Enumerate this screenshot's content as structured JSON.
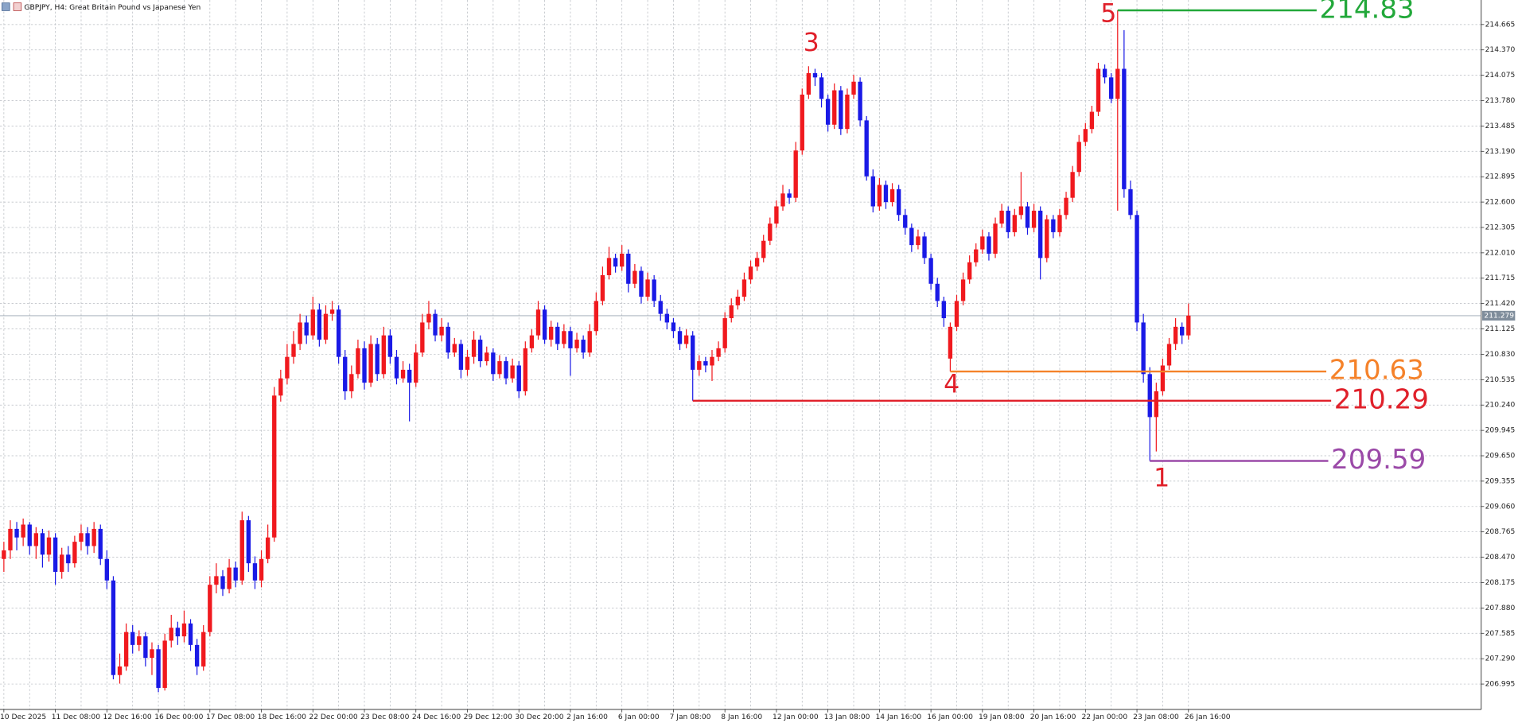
{
  "chart_data": {
    "type": "candlestick",
    "title": "GBPJPY, H4:  Great Britain Pound vs Japanese Yen",
    "bull_color": "#f0191e",
    "bear_color": "#1a1ae6",
    "grid": true,
    "ylim": [
      206.7,
      214.95
    ],
    "yticks": [
      {
        "value": 214.665,
        "label": "214.665"
      },
      {
        "value": 214.37,
        "label": "214.370"
      },
      {
        "value": 214.075,
        "label": "214.075"
      },
      {
        "value": 213.78,
        "label": "213.780"
      },
      {
        "value": 213.485,
        "label": "213.485"
      },
      {
        "value": 213.19,
        "label": "213.190"
      },
      {
        "value": 212.895,
        "label": "212.895"
      },
      {
        "value": 212.6,
        "label": "212.600"
      },
      {
        "value": 212.305,
        "label": "212.305"
      },
      {
        "value": 212.01,
        "label": "212.010"
      },
      {
        "value": 211.715,
        "label": "211.715"
      },
      {
        "value": 211.42,
        "label": "211.420"
      },
      {
        "value": 211.125,
        "label": "211.125"
      },
      {
        "value": 210.83,
        "label": "210.830"
      },
      {
        "value": 210.535,
        "label": "210.535"
      },
      {
        "value": 210.24,
        "label": "210.240"
      },
      {
        "value": 209.945,
        "label": "209.945"
      },
      {
        "value": 209.65,
        "label": "209.650"
      },
      {
        "value": 209.355,
        "label": "209.355"
      },
      {
        "value": 209.06,
        "label": "209.060"
      },
      {
        "value": 208.765,
        "label": "208.765"
      },
      {
        "value": 208.47,
        "label": "208.470"
      },
      {
        "value": 208.175,
        "label": "208.175"
      },
      {
        "value": 207.88,
        "label": "207.880"
      },
      {
        "value": 207.585,
        "label": "207.585"
      },
      {
        "value": 207.29,
        "label": "207.290"
      },
      {
        "value": 206.995,
        "label": "206.995"
      }
    ],
    "current_price": 211.279,
    "levels": [
      {
        "value": 214.83,
        "color": "#22a83a"
      },
      {
        "value": 210.63,
        "color": "#f5822a"
      },
      {
        "value": 210.29,
        "color": "#e0202a"
      },
      {
        "value": 209.59,
        "color": "#9b4aa8"
      }
    ],
    "wave_labels": [
      "5",
      "3",
      "4",
      "1"
    ],
    "categories": [
      "10 Dec 2025",
      null,
      null,
      null,
      null,
      null,
      null,
      null,
      "11 Dec 08:00",
      null,
      null,
      null,
      null,
      null,
      null,
      null,
      "12 Dec 16:00",
      null,
      null,
      null,
      null,
      null,
      null,
      null,
      "16 Dec 00:00",
      null,
      null,
      null,
      null,
      null,
      null,
      null,
      "17 Dec 08:00",
      null,
      null,
      null,
      null,
      null,
      null,
      null,
      "18 Dec 16:00",
      null,
      null,
      null,
      null,
      null,
      null,
      null,
      "22 Dec 00:00",
      null,
      null,
      null,
      null,
      null,
      null,
      null,
      "23 Dec 08:00",
      null,
      null,
      null,
      null,
      null,
      null,
      null,
      "24 Dec 16:00",
      null,
      null,
      null,
      null,
      null,
      null,
      null,
      "29 Dec 12:00",
      null,
      null,
      null,
      null,
      null,
      null,
      null,
      "30 Dec 20:00",
      null,
      null,
      null,
      null,
      null,
      null,
      null,
      "2 Jan 16:00",
      null,
      null,
      null,
      null,
      null,
      null,
      null,
      "6 Jan 00:00",
      null,
      null,
      null,
      null,
      null,
      null,
      null,
      "7 Jan 08:00",
      null,
      null,
      null,
      null,
      null,
      null,
      null,
      "8 Jan 16:00",
      null,
      null,
      null,
      null,
      null,
      null,
      null,
      "12 Jan 00:00",
      null,
      null,
      null,
      null,
      null,
      null,
      null,
      "13 Jan 08:00",
      null,
      null,
      null,
      null,
      null,
      null,
      null,
      "14 Jan 16:00",
      null,
      null,
      null,
      null,
      null,
      null,
      null,
      "16 Jan 00:00",
      null,
      null,
      null,
      null,
      null,
      null,
      null,
      "19 Jan 08:00",
      null,
      null,
      null,
      null,
      null,
      null,
      null,
      "20 Jan 16:00",
      null,
      null,
      null,
      null,
      null,
      null,
      null,
      "22 Jan 00:00",
      null,
      null,
      null,
      null,
      null,
      null,
      null,
      "23 Jan 08:00",
      null,
      null,
      null,
      null,
      null,
      null,
      null,
      "26 Jan 16:00"
    ],
    "ohlc": [
      [
        208.45,
        208.65,
        208.3,
        208.55
      ],
      [
        208.55,
        208.9,
        208.45,
        208.8
      ],
      [
        208.8,
        208.88,
        208.55,
        208.7
      ],
      [
        208.7,
        208.92,
        208.6,
        208.85
      ],
      [
        208.85,
        208.88,
        208.5,
        208.6
      ],
      [
        208.6,
        208.82,
        208.45,
        208.75
      ],
      [
        208.75,
        208.8,
        208.35,
        208.5
      ],
      [
        208.5,
        208.78,
        208.42,
        208.7
      ],
      [
        208.7,
        208.75,
        208.15,
        208.3
      ],
      [
        208.3,
        208.58,
        208.22,
        208.5
      ],
      [
        208.5,
        208.6,
        208.3,
        208.4
      ],
      [
        208.4,
        208.72,
        208.35,
        208.65
      ],
      [
        208.65,
        208.85,
        208.55,
        208.75
      ],
      [
        208.75,
        208.82,
        208.5,
        208.6
      ],
      [
        208.6,
        208.88,
        208.52,
        208.8
      ],
      [
        208.8,
        208.85,
        208.38,
        208.45
      ],
      [
        208.45,
        208.55,
        208.1,
        208.2
      ],
      [
        208.2,
        208.25,
        207.05,
        207.1
      ],
      [
        207.1,
        207.35,
        207.0,
        207.2
      ],
      [
        207.2,
        207.7,
        207.15,
        207.6
      ],
      [
        207.6,
        207.68,
        207.35,
        207.45
      ],
      [
        207.45,
        207.62,
        207.38,
        207.55
      ],
      [
        207.55,
        207.6,
        207.2,
        207.3
      ],
      [
        207.3,
        207.48,
        207.1,
        207.4
      ],
      [
        207.4,
        207.45,
        206.9,
        206.95
      ],
      [
        206.95,
        207.58,
        206.92,
        207.5
      ],
      [
        207.5,
        207.8,
        207.42,
        207.65
      ],
      [
        207.65,
        207.72,
        207.45,
        207.55
      ],
      [
        207.55,
        207.85,
        207.48,
        207.7
      ],
      [
        207.7,
        207.75,
        207.38,
        207.45
      ],
      [
        207.45,
        207.52,
        207.1,
        207.2
      ],
      [
        207.2,
        207.68,
        207.15,
        207.6
      ],
      [
        207.6,
        208.25,
        207.55,
        208.15
      ],
      [
        208.15,
        208.4,
        208.05,
        208.25
      ],
      [
        208.25,
        208.32,
        208.02,
        208.1
      ],
      [
        208.1,
        208.45,
        208.05,
        208.35
      ],
      [
        208.35,
        208.42,
        208.12,
        208.2
      ],
      [
        208.2,
        209.0,
        208.15,
        208.9
      ],
      [
        208.9,
        208.95,
        208.3,
        208.4
      ],
      [
        208.4,
        208.48,
        208.1,
        208.2
      ],
      [
        208.2,
        208.55,
        208.12,
        208.45
      ],
      [
        208.45,
        208.85,
        208.4,
        208.7
      ],
      [
        208.7,
        210.45,
        208.65,
        210.35
      ],
      [
        210.35,
        210.65,
        210.28,
        210.55
      ],
      [
        210.55,
        210.95,
        210.48,
        210.8
      ],
      [
        210.8,
        211.1,
        210.72,
        210.95
      ],
      [
        210.95,
        211.3,
        210.88,
        211.2
      ],
      [
        211.2,
        211.28,
        210.95,
        211.05
      ],
      [
        211.05,
        211.5,
        211.0,
        211.35
      ],
      [
        211.35,
        211.42,
        210.92,
        211.0
      ],
      [
        211.0,
        211.4,
        210.95,
        211.3
      ],
      [
        211.3,
        211.45,
        211.22,
        211.35
      ],
      [
        211.35,
        211.4,
        210.72,
        210.8
      ],
      [
        210.8,
        210.88,
        210.3,
        210.4
      ],
      [
        210.4,
        210.7,
        210.32,
        210.6
      ],
      [
        210.6,
        211.0,
        210.55,
        210.9
      ],
      [
        210.9,
        210.98,
        210.42,
        210.5
      ],
      [
        210.5,
        211.05,
        210.45,
        210.95
      ],
      [
        210.95,
        211.02,
        210.52,
        210.6
      ],
      [
        210.6,
        211.15,
        210.55,
        211.05
      ],
      [
        211.05,
        211.12,
        210.72,
        210.8
      ],
      [
        210.8,
        210.88,
        210.48,
        210.55
      ],
      [
        210.55,
        210.75,
        210.5,
        210.65
      ],
      [
        210.65,
        210.72,
        210.05,
        210.5
      ],
      [
        210.5,
        210.95,
        210.45,
        210.85
      ],
      [
        210.85,
        211.3,
        210.8,
        211.2
      ],
      [
        211.2,
        211.45,
        211.12,
        211.3
      ],
      [
        211.3,
        211.35,
        210.98,
        211.05
      ],
      [
        211.05,
        211.25,
        210.98,
        211.15
      ],
      [
        211.15,
        211.2,
        210.78,
        210.85
      ],
      [
        210.85,
        211.02,
        210.8,
        210.95
      ],
      [
        210.95,
        211.0,
        210.55,
        210.65
      ],
      [
        210.65,
        210.88,
        210.58,
        210.8
      ],
      [
        210.8,
        211.1,
        210.72,
        211.0
      ],
      [
        211.0,
        211.05,
        210.68,
        210.75
      ],
      [
        210.75,
        210.92,
        210.7,
        210.85
      ],
      [
        210.85,
        210.9,
        210.52,
        210.6
      ],
      [
        210.6,
        210.82,
        210.55,
        210.75
      ],
      [
        210.75,
        210.8,
        210.48,
        210.55
      ],
      [
        210.55,
        210.78,
        210.5,
        210.7
      ],
      [
        210.7,
        210.75,
        210.32,
        210.4
      ],
      [
        210.4,
        210.98,
        210.35,
        210.9
      ],
      [
        210.9,
        211.12,
        210.85,
        211.05
      ],
      [
        211.05,
        211.45,
        211.0,
        211.35
      ],
      [
        211.35,
        211.4,
        210.95,
        211.0
      ],
      [
        211.0,
        211.22,
        210.92,
        211.15
      ],
      [
        211.15,
        211.2,
        210.88,
        210.95
      ],
      [
        210.95,
        211.18,
        210.9,
        211.1
      ],
      [
        211.1,
        211.15,
        210.58,
        210.9
      ],
      [
        210.9,
        211.08,
        210.85,
        211.0
      ],
      [
        211.0,
        211.05,
        210.78,
        210.85
      ],
      [
        210.85,
        211.18,
        210.8,
        211.1
      ],
      [
        211.1,
        211.55,
        211.05,
        211.45
      ],
      [
        211.45,
        211.85,
        211.4,
        211.75
      ],
      [
        211.75,
        212.08,
        211.7,
        211.95
      ],
      [
        211.95,
        212.0,
        211.78,
        211.85
      ],
      [
        211.85,
        212.1,
        211.8,
        212.0
      ],
      [
        212.0,
        212.05,
        211.55,
        211.65
      ],
      [
        211.65,
        211.88,
        211.6,
        211.8
      ],
      [
        211.8,
        211.85,
        211.42,
        211.5
      ],
      [
        211.5,
        211.78,
        211.45,
        211.7
      ],
      [
        211.7,
        211.75,
        211.38,
        211.45
      ],
      [
        211.45,
        211.52,
        211.22,
        211.3
      ],
      [
        211.3,
        211.36,
        211.12,
        211.2
      ],
      [
        211.2,
        211.25,
        211.02,
        211.1
      ],
      [
        211.1,
        211.15,
        210.88,
        210.95
      ],
      [
        210.95,
        211.12,
        210.9,
        211.05
      ],
      [
        211.05,
        211.1,
        210.29,
        210.65
      ],
      [
        210.65,
        210.82,
        210.58,
        210.75
      ],
      [
        210.75,
        210.8,
        210.62,
        210.7
      ],
      [
        210.7,
        210.88,
        210.52,
        210.8
      ],
      [
        210.8,
        210.98,
        210.75,
        210.9
      ],
      [
        210.9,
        211.32,
        210.85,
        211.25
      ],
      [
        211.25,
        211.48,
        211.2,
        211.4
      ],
      [
        211.4,
        211.58,
        211.35,
        211.5
      ],
      [
        211.5,
        211.78,
        211.45,
        211.7
      ],
      [
        211.7,
        211.92,
        211.65,
        211.85
      ],
      [
        211.85,
        212.02,
        211.8,
        211.95
      ],
      [
        211.95,
        212.22,
        211.9,
        212.15
      ],
      [
        212.15,
        212.42,
        212.1,
        212.35
      ],
      [
        212.35,
        212.62,
        212.3,
        212.55
      ],
      [
        212.55,
        212.8,
        212.5,
        212.7
      ],
      [
        212.7,
        212.75,
        212.58,
        212.65
      ],
      [
        212.65,
        213.3,
        212.6,
        213.2
      ],
      [
        213.2,
        213.92,
        213.15,
        213.85
      ],
      [
        213.85,
        214.18,
        213.8,
        214.1
      ],
      [
        214.1,
        214.15,
        213.95,
        214.05
      ],
      [
        214.05,
        214.1,
        213.7,
        213.8
      ],
      [
        213.8,
        213.85,
        213.42,
        213.5
      ],
      [
        213.5,
        213.98,
        213.45,
        213.9
      ],
      [
        213.9,
        213.95,
        213.38,
        213.45
      ],
      [
        213.45,
        213.92,
        213.4,
        213.85
      ],
      [
        213.85,
        214.08,
        213.8,
        214.0
      ],
      [
        214.0,
        214.05,
        213.48,
        213.55
      ],
      [
        213.55,
        213.6,
        212.85,
        212.9
      ],
      [
        212.9,
        212.98,
        212.48,
        212.55
      ],
      [
        212.55,
        212.88,
        212.5,
        212.8
      ],
      [
        212.8,
        212.85,
        212.52,
        212.6
      ],
      [
        212.6,
        212.82,
        212.55,
        212.75
      ],
      [
        212.75,
        212.8,
        212.38,
        212.45
      ],
      [
        212.45,
        212.52,
        212.22,
        212.3
      ],
      [
        212.3,
        212.35,
        212.02,
        212.1
      ],
      [
        212.1,
        212.28,
        212.05,
        212.2
      ],
      [
        212.2,
        212.25,
        211.88,
        211.95
      ],
      [
        211.95,
        212.0,
        211.58,
        211.65
      ],
      [
        211.65,
        211.72,
        211.38,
        211.45
      ],
      [
        211.45,
        211.5,
        211.15,
        211.25
      ],
      [
        210.78,
        211.2,
        210.63,
        211.15
      ],
      [
        211.15,
        211.52,
        211.1,
        211.45
      ],
      [
        211.45,
        211.78,
        211.4,
        211.7
      ],
      [
        211.7,
        211.98,
        211.65,
        211.9
      ],
      [
        211.9,
        212.12,
        211.85,
        212.05
      ],
      [
        212.05,
        212.28,
        212.0,
        212.2
      ],
      [
        212.2,
        212.25,
        211.92,
        212.0
      ],
      [
        212.0,
        212.42,
        211.95,
        212.35
      ],
      [
        212.35,
        212.58,
        212.3,
        212.5
      ],
      [
        212.5,
        212.55,
        212.18,
        212.25
      ],
      [
        212.25,
        212.52,
        212.2,
        212.45
      ],
      [
        212.45,
        212.95,
        212.4,
        212.55
      ],
      [
        212.55,
        212.6,
        212.22,
        212.3
      ],
      [
        212.3,
        212.58,
        212.25,
        212.5
      ],
      [
        212.5,
        212.55,
        211.7,
        211.95
      ],
      [
        211.95,
        212.45,
        211.9,
        212.4
      ],
      [
        212.4,
        212.45,
        212.18,
        212.25
      ],
      [
        212.25,
        212.52,
        212.2,
        212.45
      ],
      [
        212.45,
        212.72,
        212.4,
        212.65
      ],
      [
        212.65,
        213.02,
        212.6,
        212.95
      ],
      [
        212.95,
        213.38,
        212.9,
        213.3
      ],
      [
        213.3,
        213.52,
        213.25,
        213.45
      ],
      [
        213.45,
        213.72,
        213.4,
        213.65
      ],
      [
        213.65,
        214.22,
        213.6,
        214.15
      ],
      [
        214.15,
        214.2,
        213.98,
        214.05
      ],
      [
        214.05,
        214.1,
        213.75,
        213.8
      ],
      [
        213.8,
        214.83,
        212.5,
        214.15
      ],
      [
        214.15,
        214.6,
        212.65,
        212.75
      ],
      [
        212.75,
        212.85,
        212.4,
        212.45
      ],
      [
        212.45,
        212.5,
        211.1,
        211.2
      ],
      [
        211.2,
        211.3,
        210.5,
        210.6
      ],
      [
        210.6,
        210.68,
        209.59,
        210.1
      ],
      [
        210.1,
        210.5,
        209.7,
        210.4
      ],
      [
        210.4,
        210.78,
        210.35,
        210.7
      ],
      [
        210.7,
        211.02,
        210.65,
        210.95
      ],
      [
        210.95,
        211.25,
        210.88,
        211.15
      ],
      [
        211.15,
        211.2,
        210.95,
        211.05
      ],
      [
        211.05,
        211.42,
        211.0,
        211.28
      ]
    ]
  }
}
